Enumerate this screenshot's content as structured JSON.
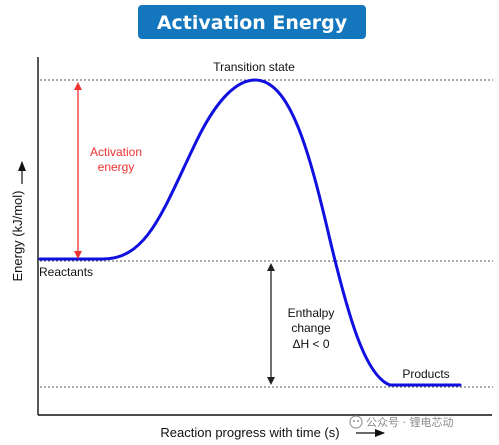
{
  "title": "Activation Energy",
  "y_axis_label": "Energy (kJ/mol)",
  "x_axis_label": "Reaction progress with time (s)",
  "labels": {
    "transition_state": "Transition state",
    "activation_energy_line1": "Activation",
    "activation_energy_line2": "energy",
    "reactants": "Reactants",
    "products": "Products",
    "enthalpy_line1": "Enthalpy",
    "enthalpy_line2": "change",
    "enthalpy_line3": "ΔH < 0"
  },
  "watermark": "公众号 · 锂电芯动",
  "colors": {
    "title_bg": "#1477bd",
    "curve": "#1010e0",
    "activation": "#ee3333",
    "axis": "#111111",
    "guide": "#555555"
  }
}
